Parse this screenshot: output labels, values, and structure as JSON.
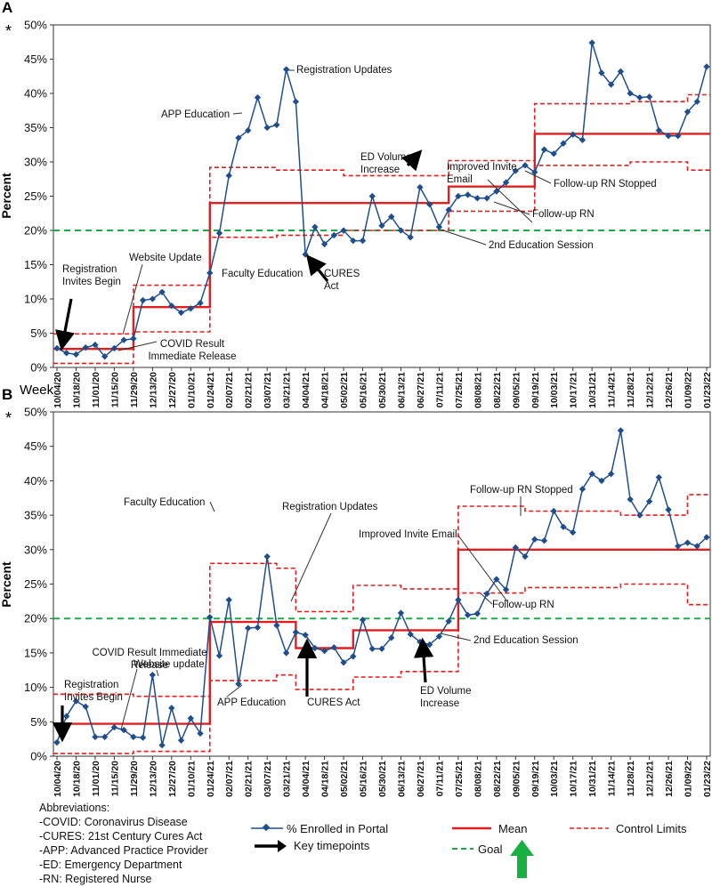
{
  "chart_data": [
    {
      "type": "line",
      "panel_label": "A",
      "asterisk": "*",
      "ylabel": "Percent",
      "xlabel": "Week",
      "ylim": [
        0,
        50
      ],
      "yticks": [
        "0%",
        "5%",
        "10%",
        "15%",
        "20%",
        "25%",
        "30%",
        "35%",
        "40%",
        "45%",
        "50%"
      ],
      "grid": false,
      "x_tick_labels": [
        "10/04/20",
        "10/18/20",
        "11/01/20",
        "11/15/20",
        "11/29/20",
        "12/13/20",
        "12/27/20",
        "01/10/21",
        "01/24/21",
        "02/07/21",
        "02/21/21",
        "03/07/21",
        "03/21/21",
        "04/04/21",
        "04/18/21",
        "05/02/21",
        "05/16/21",
        "05/30/21",
        "06/13/21",
        "06/27/21",
        "07/11/21",
        "07/25/21",
        "08/08/21",
        "08/22/21",
        "09/05/21",
        "09/19/21",
        "10/03/21",
        "10/17/21",
        "10/31/21",
        "11/14/21",
        "11/28/21",
        "12/12/21",
        "12/26/21",
        "01/09/22",
        "01/23/22"
      ],
      "series": [
        {
          "name": "% Enrolled in Portal",
          "values": [
            2.8,
            2.1,
            1.9,
            2.9,
            3.3,
            1.6,
            2.8,
            4.0,
            4.2,
            9.8,
            10.0,
            11.0,
            9.0,
            8.0,
            8.6,
            9.4,
            13.8,
            19.6,
            28.0,
            33.5,
            34.6,
            39.4,
            35.0,
            35.4,
            43.5,
            38.8,
            16.5,
            20.5,
            18.0,
            19.3,
            20.0,
            18.5,
            18.5,
            25.0,
            20.7,
            22.0,
            20.0,
            19.0,
            26.3,
            23.8,
            20.5,
            23.0,
            25.0,
            25.2,
            24.7,
            24.7,
            25.7,
            27.0,
            28.7,
            29.5,
            28.5,
            31.8,
            31.2,
            32.7,
            34.0,
            33.2,
            47.4,
            43.0,
            41.3,
            43.2,
            40.0,
            39.4,
            39.5,
            34.6,
            33.8,
            33.8,
            37.3,
            38.8,
            43.9
          ]
        },
        {
          "name": "Mean",
          "steps": [
            [
              0,
              8,
              2.7
            ],
            [
              8,
              16,
              8.8
            ],
            [
              16,
              41,
              24.0
            ],
            [
              41,
              50,
              26.4
            ],
            [
              50,
              68,
              34.1
            ]
          ]
        },
        {
          "name": "Control Limits (upper)",
          "steps": [
            [
              0,
              8,
              4.9
            ],
            [
              8,
              16,
              12.0
            ],
            [
              16,
              23,
              29.2
            ],
            [
              23,
              30,
              28.8
            ],
            [
              30,
              41,
              28.0
            ],
            [
              41,
              50,
              30.2
            ],
            [
              50,
              60,
              38.5
            ],
            [
              60,
              66,
              38.8
            ],
            [
              66,
              68,
              39.8
            ]
          ]
        },
        {
          "name": "Control Limits (lower)",
          "steps": [
            [
              0,
              8,
              0.6
            ],
            [
              8,
              16,
              5.2
            ],
            [
              16,
              23,
              19.0
            ],
            [
              23,
              30,
              19.3
            ],
            [
              30,
              41,
              20.0
            ],
            [
              41,
              50,
              22.8
            ],
            [
              50,
              60,
              29.5
            ],
            [
              60,
              66,
              30.0
            ],
            [
              66,
              68,
              28.8
            ]
          ]
        },
        {
          "name": "Goal",
          "value": 20
        }
      ],
      "annotations": [
        {
          "text": "Registration Invites Begin",
          "x": 0,
          "y": 2.8
        },
        {
          "text": "COVID Result Immediate Release",
          "x": 6,
          "y": 2.8
        },
        {
          "text": "Website Update",
          "x": 8,
          "y": 4.2
        },
        {
          "text": "Faculty Education",
          "x": 16,
          "y": 13.8
        },
        {
          "text": "APP Education",
          "x": 19,
          "y": 33.5
        },
        {
          "text": "Registration Updates",
          "x": 24,
          "y": 43.5
        },
        {
          "text": "CURES Act",
          "x": 26,
          "y": 16.5
        },
        {
          "text": "ED Volume Increase",
          "x": 38,
          "y": 26.3
        },
        {
          "text": "2nd Education Session",
          "x": 40,
          "y": 20.5
        },
        {
          "text": "Follow-up RN",
          "x": 46,
          "y": 25.7
        },
        {
          "text": "Improved Invite Email",
          "x": 50,
          "y": 28.5
        },
        {
          "text": "Follow-up RN Stopped",
          "x": 49,
          "y": 29.5
        }
      ]
    },
    {
      "type": "line",
      "panel_label": "B",
      "asterisk": "*",
      "ylabel": "Percent",
      "ylim": [
        0,
        50
      ],
      "yticks": [
        "0%",
        "5%",
        "10%",
        "15%",
        "20%",
        "25%",
        "30%",
        "35%",
        "40%",
        "45%",
        "50%"
      ],
      "grid": false,
      "x_tick_labels": [
        "10/04/20",
        "10/18/20",
        "11/01/20",
        "11/15/20",
        "11/29/20",
        "12/13/20",
        "12/27/20",
        "01/10/21",
        "01/24/21",
        "02/07/21",
        "02/21/21",
        "03/07/21",
        "03/21/21",
        "04/04/21",
        "04/18/21",
        "05/02/21",
        "05/16/21",
        "05/30/21",
        "06/13/21",
        "06/27/21",
        "07/11/21",
        "07/25/21",
        "08/08/21",
        "08/22/21",
        "09/05/21",
        "09/19/21",
        "10/03/21",
        "10/17/21",
        "10/31/21",
        "11/14/21",
        "11/28/21",
        "12/12/21",
        "12/26/21",
        "01/09/22",
        "01/23/22"
      ],
      "series": [
        {
          "name": "% Enrolled in Portal",
          "values": [
            2.0,
            5.8,
            8.0,
            7.2,
            2.8,
            2.8,
            4.2,
            3.8,
            2.8,
            2.7,
            11.8,
            1.6,
            7.0,
            2.3,
            5.5,
            3.3,
            20.2,
            14.6,
            22.7,
            10.5,
            18.6,
            18.7,
            29.0,
            19.0,
            15.0,
            18.0,
            17.6,
            15.7,
            15.3,
            15.8,
            13.6,
            14.5,
            19.8,
            15.6,
            15.6,
            17.2,
            20.8,
            17.7,
            16.6,
            16.2,
            17.4,
            19.6,
            22.7,
            20.5,
            20.7,
            23.6,
            25.7,
            24.2,
            30.3,
            29.0,
            31.5,
            31.3,
            35.6,
            33.3,
            32.5,
            38.8,
            41.0,
            40.0,
            41.0,
            47.3,
            37.3,
            35.0,
            37.0,
            40.5,
            35.8,
            30.5,
            31.0,
            30.5,
            31.8
          ]
        },
        {
          "name": "Mean",
          "steps": [
            [
              0,
              16,
              4.7
            ],
            [
              16,
              25,
              19.5
            ],
            [
              25,
              31,
              15.7
            ],
            [
              31,
              42,
              18.3
            ],
            [
              42,
              68,
              30.0
            ]
          ]
        },
        {
          "name": "Control Limits (upper)",
          "steps": [
            [
              0,
              8,
              9.0
            ],
            [
              8,
              16,
              8.7
            ],
            [
              16,
              23,
              28.0
            ],
            [
              23,
              25,
              27.3
            ],
            [
              25,
              31,
              21.0
            ],
            [
              31,
              36,
              24.8
            ],
            [
              36,
              42,
              24.3
            ],
            [
              42,
              49,
              36.3
            ],
            [
              49,
              59,
              35.6
            ],
            [
              59,
              66,
              35.0
            ],
            [
              66,
              68,
              38.0
            ]
          ]
        },
        {
          "name": "Control Limits (lower)",
          "steps": [
            [
              0,
              8,
              0.4
            ],
            [
              8,
              16,
              0.7
            ],
            [
              16,
              23,
              11.0
            ],
            [
              23,
              25,
              11.8
            ],
            [
              25,
              31,
              9.7
            ],
            [
              31,
              36,
              11.5
            ],
            [
              36,
              42,
              12.3
            ],
            [
              42,
              49,
              23.7
            ],
            [
              49,
              59,
              24.5
            ],
            [
              59,
              66,
              25.0
            ],
            [
              66,
              68,
              22.0
            ]
          ]
        },
        {
          "name": "Goal",
          "value": 20
        }
      ],
      "annotations": [
        {
          "text": "Registration Invites Begin",
          "x": 0,
          "y": 2.0
        },
        {
          "text": "COVID Result Immediate Release",
          "x": 6,
          "y": 4.2
        },
        {
          "text": "Website update",
          "x": 10,
          "y": 11.8
        },
        {
          "text": "Faculty Education",
          "x": 16,
          "y": 20.2
        },
        {
          "text": "APP Education",
          "x": 19,
          "y": 10.5
        },
        {
          "text": "Registration Updates",
          "x": 24,
          "y": 15.0
        },
        {
          "text": "CURES Act",
          "x": 26,
          "y": 17.6
        },
        {
          "text": "ED Volume Increase",
          "x": 37,
          "y": 17.7
        },
        {
          "text": "2nd Education Session",
          "x": 39,
          "y": 16.2
        },
        {
          "text": "Follow-up RN",
          "x": 45,
          "y": 23.6
        },
        {
          "text": "Improved Invite Email",
          "x": 48,
          "y": 30.3
        },
        {
          "text": "Follow-up RN Stopped",
          "x": 49,
          "y": 29.0
        }
      ]
    }
  ],
  "legend": {
    "enrolled": "% Enrolled in Portal",
    "key_timepoints": "Key timepoints",
    "mean": "Mean",
    "goal": "Goal",
    "control_limits": "Control Limits"
  },
  "abbreviations": {
    "heading": "Abbreviations:",
    "items": [
      "-COVID: Coronavirus Disease",
      "-CURES: 21st Century Cures Act",
      "-APP: Advanced Practice Provider",
      "-ED: Emergency Department",
      "-RN: Registered Nurse"
    ]
  },
  "colors": {
    "series": "#1f4e8c",
    "mean": "#e02020",
    "limits": "#e02020",
    "goal": "#22a84a",
    "arrow_up": "#18b040"
  }
}
